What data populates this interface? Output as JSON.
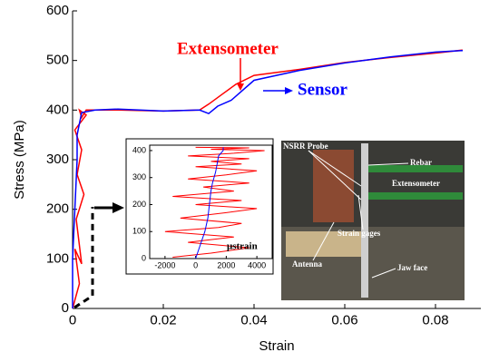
{
  "chart_data": [
    {
      "type": "line",
      "xlabel": "Strain",
      "ylabel": "Stress (MPa)",
      "xlim": [
        0,
        0.09
      ],
      "xticks": [
        0,
        0.02,
        0.04,
        0.06,
        0.08
      ],
      "ylim": [
        0,
        600
      ],
      "yticks": [
        0,
        100,
        200,
        300,
        400,
        500,
        600
      ],
      "series": [
        {
          "name": "Extensometer",
          "color": "#ff0000",
          "x": [
            0,
            0.0015,
            0.0005,
            0.002,
            0.0008,
            0.0025,
            0.001,
            0.002,
            0.0005,
            0.003,
            0.0015,
            0.002,
            0.003,
            0.01,
            0.02,
            0.028,
            0.03,
            0.033,
            0.036,
            0.04,
            0.05,
            0.06,
            0.07,
            0.08,
            0.086
          ],
          "values": [
            0,
            50,
            120,
            90,
            180,
            230,
            270,
            320,
            360,
            390,
            400,
            385,
            400,
            400,
            398,
            400,
            412,
            432,
            452,
            470,
            482,
            496,
            506,
            515,
            521
          ]
        },
        {
          "name": "Sensor",
          "color": "#0000ff",
          "x": [
            0,
            0,
            0.0005,
            0.001,
            0.001,
            0.002,
            0.005,
            0.01,
            0.02,
            0.028,
            0.03,
            0.032,
            0.035,
            0.04,
            0.05,
            0.06,
            0.07,
            0.08,
            0.086
          ],
          "values": [
            0,
            100,
            200,
            300,
            350,
            395,
            400,
            402,
            398,
            400,
            393,
            408,
            420,
            460,
            480,
            495,
            507,
            517,
            520
          ]
        }
      ],
      "annotations": [
        {
          "text": "Extensometer",
          "color": "#ff0000"
        },
        {
          "text": "Sensor",
          "color": "#0000ff"
        }
      ]
    },
    {
      "type": "line",
      "xlabel": "μstrain",
      "xlim": [
        -3000,
        5000
      ],
      "xticks": [
        -2000,
        0,
        2000,
        4000
      ],
      "ylim": [
        0,
        420
      ],
      "yticks": [
        0,
        100,
        200,
        300,
        400
      ],
      "series": [
        {
          "name": "Extensometer",
          "color": "#ff0000",
          "x": [
            -1500,
            1000,
            3500,
            -500,
            2500,
            -2000,
            1500,
            3000,
            -1000,
            2000,
            4000,
            0,
            3000,
            -1500,
            2500,
            500,
            3500,
            -500,
            2000,
            4000,
            0,
            3000,
            1000,
            3500,
            -500,
            2500,
            4500,
            1000,
            3500,
            0
          ],
          "values": [
            5,
            20,
            40,
            60,
            80,
            100,
            115,
            130,
            150,
            170,
            185,
            200,
            215,
            230,
            250,
            265,
            280,
            295,
            310,
            325,
            340,
            350,
            360,
            370,
            380,
            390,
            400,
            405,
            410,
            412
          ]
        },
        {
          "name": "Sensor",
          "color": "#0000ff",
          "x": [
            0,
            300,
            600,
            800,
            900,
            1000,
            1100,
            1200,
            1300,
            1400,
            1500,
            1800,
            1800
          ],
          "values": [
            0,
            50,
            100,
            150,
            200,
            250,
            280,
            300,
            320,
            350,
            380,
            400,
            412
          ]
        }
      ]
    }
  ],
  "photo": {
    "labels": [
      "NSRR Probe",
      "Rebar",
      "Extensometer",
      "Strain gages",
      "Antenna",
      "Jaw face"
    ]
  }
}
